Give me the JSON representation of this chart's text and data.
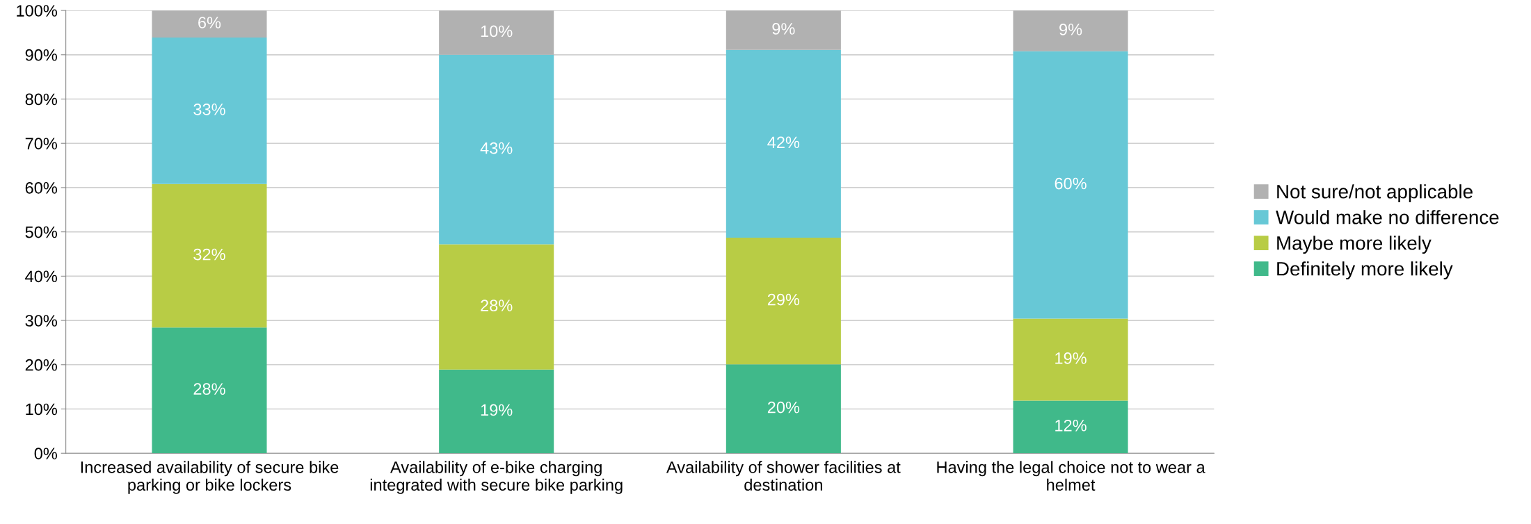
{
  "chart_data": {
    "type": "bar",
    "stacked": true,
    "categories": [
      "Increased availability of secure bike\nparking or bike lockers",
      "Availability of e-bike charging\nintegrated with secure bike parking",
      "Availability of shower facilities at\ndestination",
      "Having the legal choice not to wear a\nhelmet"
    ],
    "series": [
      {
        "name": "Definitely more likely",
        "color": "#40b98a",
        "values": [
          28.4,
          18.9,
          20.1,
          11.9
        ],
        "value_labels": [
          "28%",
          "19%",
          "20%",
          "12%"
        ]
      },
      {
        "name": "Maybe more likely",
        "color": "#b8cc45",
        "values": [
          32.4,
          28.3,
          28.6,
          18.5
        ],
        "value_labels": [
          "32%",
          "28%",
          "29%",
          "19%"
        ]
      },
      {
        "name": "Would make no difference",
        "color": "#67c8d6",
        "values": [
          33.1,
          42.8,
          42.4,
          60.4
        ],
        "value_labels": [
          "33%",
          "43%",
          "42%",
          "60%"
        ]
      },
      {
        "name": "Not sure/not applicable",
        "color": "#b1b1b1",
        "values": [
          6.1,
          10.0,
          8.9,
          9.2
        ],
        "value_labels": [
          "6%",
          "10%",
          "9%",
          "9%"
        ]
      }
    ],
    "ylim": [
      0,
      100
    ],
    "yticks": [
      {
        "value": 0,
        "label": "0%"
      },
      {
        "value": 10,
        "label": "10%"
      },
      {
        "value": 20,
        "label": "20%"
      },
      {
        "value": 30,
        "label": "30%"
      },
      {
        "value": 40,
        "label": "40%"
      },
      {
        "value": 50,
        "label": "50%"
      },
      {
        "value": 60,
        "label": "60%"
      },
      {
        "value": 70,
        "label": "70%"
      },
      {
        "value": 80,
        "label": "80%"
      },
      {
        "value": 90,
        "label": "90%"
      },
      {
        "value": 100,
        "label": "100%"
      }
    ],
    "grid": "y",
    "legend": "right"
  }
}
